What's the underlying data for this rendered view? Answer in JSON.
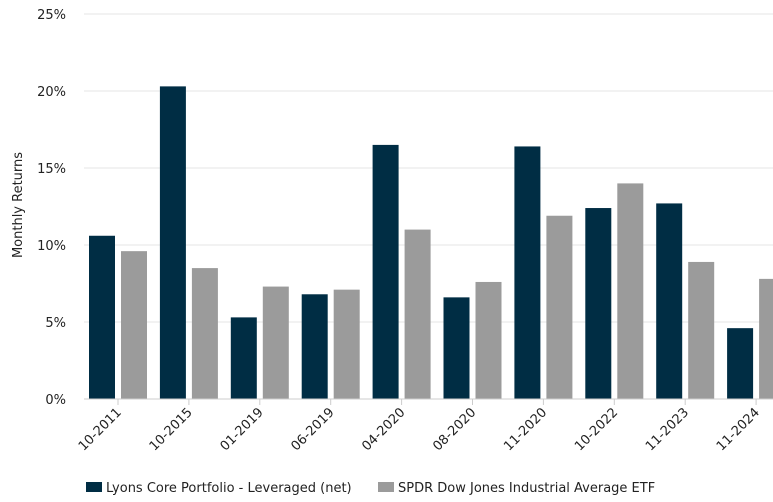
{
  "chart_data": {
    "type": "bar",
    "title": "",
    "xlabel": "",
    "ylabel": "Monthly Returns",
    "ylim": [
      0,
      25
    ],
    "yticks": [
      0,
      5,
      10,
      15,
      20,
      25
    ],
    "ytick_suffix": "%",
    "grid": true,
    "legend_position": "bottom",
    "categories": [
      "10-2011",
      "10-2015",
      "01-2019",
      "06-2019",
      "04-2020",
      "08-2020",
      "11-2020",
      "10-2022",
      "11-2023",
      "11-2024"
    ],
    "series": [
      {
        "name": "Lyons Core Portfolio - Leveraged (net)",
        "color": "#002d44",
        "values": [
          10.6,
          20.3,
          5.3,
          6.8,
          16.5,
          6.6,
          16.4,
          12.4,
          12.7,
          4.6
        ]
      },
      {
        "name": "SPDR Dow Jones Industrial Average ETF",
        "color": "#9b9b9b",
        "values": [
          9.6,
          8.5,
          7.3,
          7.1,
          11.0,
          7.6,
          11.9,
          14.0,
          8.9,
          7.8
        ]
      }
    ]
  }
}
